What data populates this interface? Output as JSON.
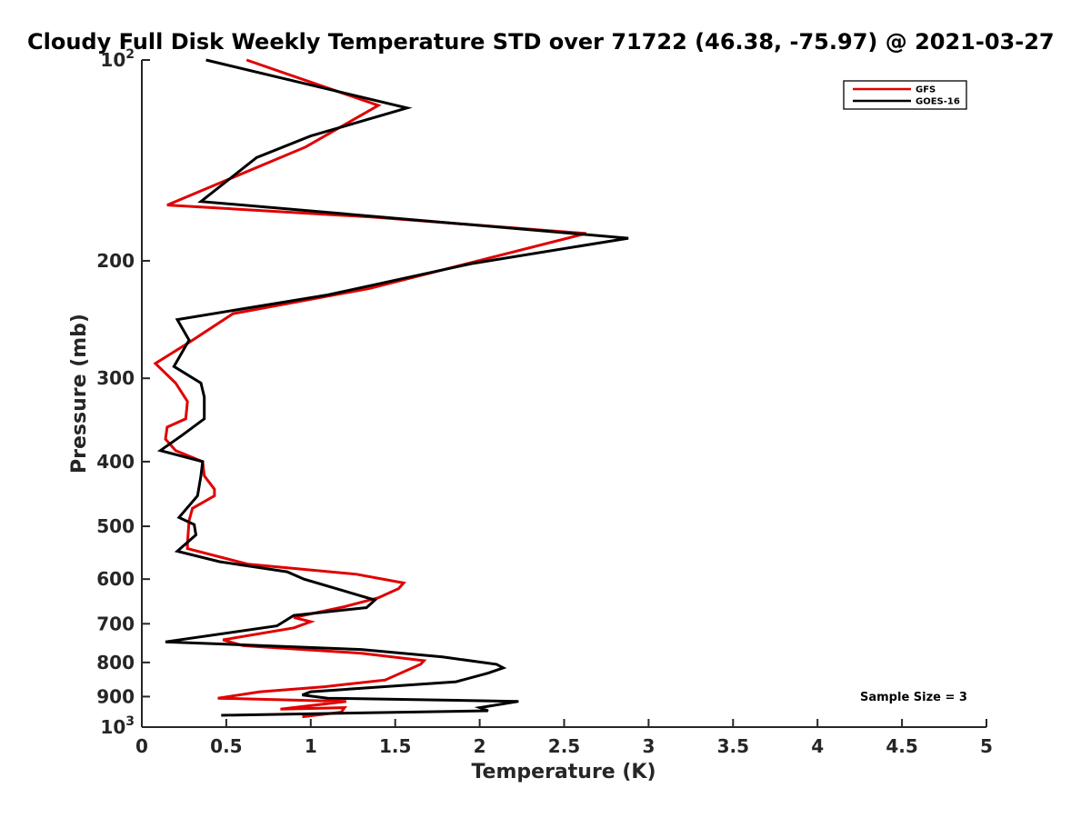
{
  "chart_data": {
    "type": "line",
    "title": "Cloudy Full Disk Weekly Temperature STD over 71722 (46.38, -75.97) @ 2021-03-27",
    "xlabel": "Temperature (K)",
    "ylabel": "Pressure (mb)",
    "xlim": [
      0,
      5
    ],
    "ylim": [
      100,
      1000
    ],
    "yscale": "log",
    "y_reversed": true,
    "xticks": [
      0,
      0.5,
      1,
      1.5,
      2,
      2.5,
      3,
      3.5,
      4,
      4.5,
      5
    ],
    "xtick_labels": [
      "0",
      "0.5",
      "1",
      "1.5",
      "2",
      "2.5",
      "3",
      "3.5",
      "4",
      "4.5",
      "5"
    ],
    "yticks": [
      100,
      200,
      300,
      400,
      500,
      600,
      700,
      800,
      900,
      1000
    ],
    "ytick_labels": [
      {
        "base": "10",
        "exp": "2"
      },
      {
        "base": "200",
        "exp": ""
      },
      {
        "base": "300",
        "exp": ""
      },
      {
        "base": "400",
        "exp": ""
      },
      {
        "base": "500",
        "exp": ""
      },
      {
        "base": "600",
        "exp": ""
      },
      {
        "base": "700",
        "exp": ""
      },
      {
        "base": "800",
        "exp": ""
      },
      {
        "base": "900",
        "exp": ""
      },
      {
        "base": "10",
        "exp": "3"
      }
    ],
    "legend_position": "top-right",
    "grid": false,
    "annotation": "Sample Size = 3",
    "series": [
      {
        "name": "GFS",
        "color": "#e00000",
        "points": [
          [
            0.62,
            100
          ],
          [
            1.4,
            117
          ],
          [
            0.97,
            135
          ],
          [
            0.15,
            165
          ],
          [
            1.37,
            172
          ],
          [
            2.63,
            182
          ],
          [
            1.35,
            220
          ],
          [
            0.54,
            240
          ],
          [
            0.28,
            265
          ],
          [
            0.08,
            285
          ],
          [
            0.2,
            305
          ],
          [
            0.27,
            325
          ],
          [
            0.26,
            345
          ],
          [
            0.15,
            355
          ],
          [
            0.14,
            370
          ],
          [
            0.2,
            385
          ],
          [
            0.36,
            400
          ],
          [
            0.37,
            420
          ],
          [
            0.43,
            440
          ],
          [
            0.43,
            450
          ],
          [
            0.3,
            470
          ],
          [
            0.28,
            490
          ],
          [
            0.27,
            530
          ],
          [
            0.27,
            540
          ],
          [
            0.63,
            570
          ],
          [
            1.27,
            590
          ],
          [
            1.55,
            608
          ],
          [
            1.52,
            620
          ],
          [
            1.4,
            640
          ],
          [
            1.2,
            660
          ],
          [
            0.9,
            685
          ],
          [
            1.0,
            695
          ],
          [
            0.9,
            710
          ],
          [
            0.48,
            740
          ],
          [
            0.6,
            755
          ],
          [
            1.3,
            775
          ],
          [
            1.67,
            795
          ],
          [
            1.65,
            805
          ],
          [
            1.44,
            850
          ],
          [
            1.08,
            870
          ],
          [
            0.7,
            885
          ],
          [
            0.45,
            905
          ],
          [
            1.21,
            915
          ],
          [
            0.82,
            940
          ],
          [
            1.2,
            935
          ],
          [
            1.18,
            950
          ],
          [
            0.95,
            965
          ]
        ]
      },
      {
        "name": "GOES-16",
        "color": "#000000",
        "points": [
          [
            0.38,
            100
          ],
          [
            1.57,
            118
          ],
          [
            1.0,
            130
          ],
          [
            0.68,
            140
          ],
          [
            0.35,
            163
          ],
          [
            2.88,
            185
          ],
          [
            1.95,
            202
          ],
          [
            1.1,
            225
          ],
          [
            0.21,
            245
          ],
          [
            0.28,
            263
          ],
          [
            0.19,
            288
          ],
          [
            0.35,
            305
          ],
          [
            0.37,
            320
          ],
          [
            0.37,
            345
          ],
          [
            0.24,
            365
          ],
          [
            0.11,
            385
          ],
          [
            0.36,
            400
          ],
          [
            0.35,
            420
          ],
          [
            0.33,
            450
          ],
          [
            0.22,
            485
          ],
          [
            0.31,
            497
          ],
          [
            0.32,
            515
          ],
          [
            0.21,
            545
          ],
          [
            0.46,
            565
          ],
          [
            0.86,
            585
          ],
          [
            0.96,
            600
          ],
          [
            1.38,
            645
          ],
          [
            1.33,
            662
          ],
          [
            0.9,
            680
          ],
          [
            0.8,
            705
          ],
          [
            0.14,
            745
          ],
          [
            1.3,
            765
          ],
          [
            1.78,
            785
          ],
          [
            2.1,
            805
          ],
          [
            2.14,
            815
          ],
          [
            2.05,
            830
          ],
          [
            1.86,
            855
          ],
          [
            1.0,
            885
          ],
          [
            0.95,
            895
          ],
          [
            1.1,
            905
          ],
          [
            2.23,
            915
          ],
          [
            2.0,
            935
          ],
          [
            2.05,
            945
          ],
          [
            0.47,
            960
          ]
        ]
      }
    ]
  }
}
